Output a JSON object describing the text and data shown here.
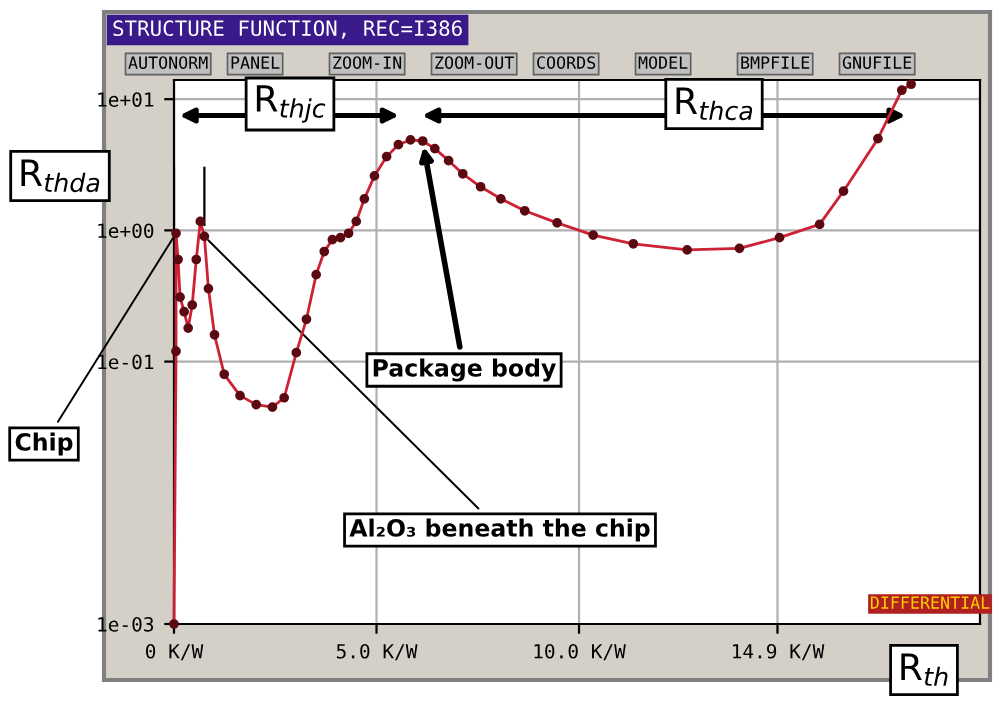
{
  "chart_data": {
    "type": "line",
    "title": "STRUCTURE FUNCTION, REC=I386",
    "x": [
      0,
      0.05,
      0.05,
      0.1,
      0.15,
      0.25,
      0.35,
      0.45,
      0.55,
      0.65,
      0.75,
      0.85,
      1.0,
      1.24,
      1.63,
      2.03,
      2.43,
      2.72,
      3.02,
      3.27,
      3.51,
      3.71,
      3.91,
      4.11,
      4.31,
      4.5,
      4.7,
      4.95,
      5.25,
      5.54,
      5.84,
      6.14,
      6.44,
      6.78,
      7.13,
      7.57,
      8.07,
      8.66,
      9.46,
      10.35,
      11.34,
      12.67,
      13.96,
      14.95,
      15.94,
      16.53,
      17.38,
      17.97,
      18.2
    ],
    "series": [
      {
        "color": "#cc2233",
        "values": [
          0.001,
          0.12,
          0.95,
          0.6,
          0.31,
          0.24,
          0.18,
          0.27,
          0.6,
          1.17,
          0.9,
          0.36,
          0.16,
          0.08,
          0.055,
          0.047,
          0.045,
          0.053,
          0.117,
          0.21,
          0.46,
          0.69,
          0.85,
          0.88,
          0.95,
          1.17,
          1.74,
          2.6,
          3.65,
          4.5,
          4.9,
          4.8,
          4.2,
          3.4,
          2.7,
          2.15,
          1.74,
          1.41,
          1.14,
          0.92,
          0.79,
          0.71,
          0.73,
          0.88,
          1.11,
          1.99,
          5.0,
          11.7,
          13
        ]
      }
    ],
    "log": "y",
    "xlim": [
      0,
      19.9
    ],
    "ylim": [
      0.001,
      14
    ],
    "xticks": [
      {
        "value": 0,
        "label": "0 K/W"
      },
      {
        "value": 5,
        "label": "5.0 K/W"
      },
      {
        "value": 10,
        "label": "10.0 K/W"
      },
      {
        "value": 14.9,
        "label": "14.9 K/W"
      }
    ],
    "yticks": [
      {
        "value": 0.001,
        "label": "1e-03"
      },
      {
        "value": 0.1,
        "label": "1e-01"
      },
      {
        "value": 1,
        "label": "1e+00"
      },
      {
        "value": 10,
        "label": "1e+01"
      }
    ],
    "grid": true,
    "marker": "circle",
    "line_style": "solid",
    "annotations": [
      "R$_{thjc}$",
      "R$_{thca}$",
      "R$_{thda}$",
      {
        "text": "Chip",
        "x": 0.05,
        "y": 0.95
      },
      {
        "text": "Package body",
        "x": 6.14,
        "y": 4.8
      },
      {
        "text": "Al₂O₃ beneath the chip",
        "x": 0.75,
        "y": 0.9
      },
      "R$_{th}$",
      "DIFFERENTIAL",
      "AUTONORM",
      "PANEL",
      "ZOOM-IN",
      "ZOOM-OUT",
      "COORDS",
      "MODEL",
      "BMPFILE",
      "GNUFILE"
    ]
  }
}
